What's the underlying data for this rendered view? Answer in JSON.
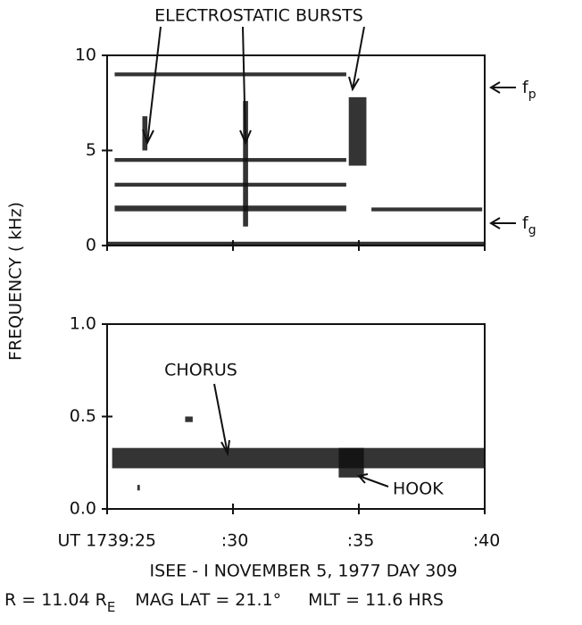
{
  "chart_data": [
    {
      "type": "spectrogram",
      "xlim": [
        25,
        40
      ],
      "xticks": [
        {
          "value": 25,
          "label": "UT 1739:25"
        },
        {
          "value": 30,
          "label": ":30"
        },
        {
          "value": 35,
          "label": ":35"
        },
        {
          "value": 40,
          "label": ":40"
        }
      ],
      "ylim": [
        0,
        10
      ],
      "yticks": [
        0,
        5,
        10
      ],
      "color": "#111111",
      "annotations": [
        "ELECTROSTATIC BURSTS",
        {
          "text": "f",
          "sub": "p"
        },
        {
          "text": "f",
          "sub": "g"
        }
      ],
      "emissions": [
        {
          "x": [
            25.3,
            34.5
          ],
          "y": [
            8.9,
            9.1
          ]
        },
        {
          "x": [
            26.4,
            26.6
          ],
          "y": [
            5.0,
            6.8
          ]
        },
        {
          "x": [
            30.4,
            30.6
          ],
          "y": [
            1.0,
            7.6
          ]
        },
        {
          "x": [
            25.3,
            34.5
          ],
          "y": [
            4.4,
            4.6
          ]
        },
        {
          "x": [
            25.3,
            34.5
          ],
          "y": [
            3.1,
            3.3
          ]
        },
        {
          "x": [
            25.3,
            34.5
          ],
          "y": [
            1.8,
            2.1
          ]
        },
        {
          "x": [
            34.6,
            35.3
          ],
          "y": [
            4.2,
            7.8
          ]
        },
        {
          "x": [
            35.5,
            39.9
          ],
          "y": [
            1.8,
            2.0
          ]
        },
        {
          "x": [
            25,
            40
          ],
          "y": [
            0,
            0.2
          ]
        }
      ]
    },
    {
      "type": "spectrogram",
      "xlim": [
        25,
        40
      ],
      "xticks": [
        {
          "value": 25,
          "label": "UT 1739:25"
        },
        {
          "value": 30,
          "label": ":30"
        },
        {
          "value": 35,
          "label": ":35"
        },
        {
          "value": 40,
          "label": ":40"
        }
      ],
      "ylim": [
        0,
        1
      ],
      "yticks": [
        {
          "value": 0,
          "label": "0.0"
        },
        {
          "value": 0.5,
          "label": "0.5"
        },
        {
          "value": 1,
          "label": "1.0"
        }
      ],
      "color": "#111111",
      "annotations": [
        "CHORUS",
        "HOOK"
      ],
      "emissions": [
        {
          "x": [
            25.2,
            40
          ],
          "y": [
            0.22,
            0.33
          ]
        },
        {
          "x": [
            28.1,
            28.4
          ],
          "y": [
            0.47,
            0.5
          ]
        },
        {
          "x": [
            26.2,
            26.3
          ],
          "y": [
            0.1,
            0.13
          ]
        },
        {
          "x": [
            34.2,
            35.2
          ],
          "y": [
            0.17,
            0.33
          ]
        }
      ]
    }
  ],
  "ylabel": "FREQUENCY ( kHz)",
  "caption": {
    "line1": "ISEE - I  NOVEMBER 5, 1977    DAY 309",
    "line2": [
      "R = 11.04  R",
      "E",
      "MAG LAT = 21.1°",
      "MLT = 11.6 HRS"
    ]
  }
}
